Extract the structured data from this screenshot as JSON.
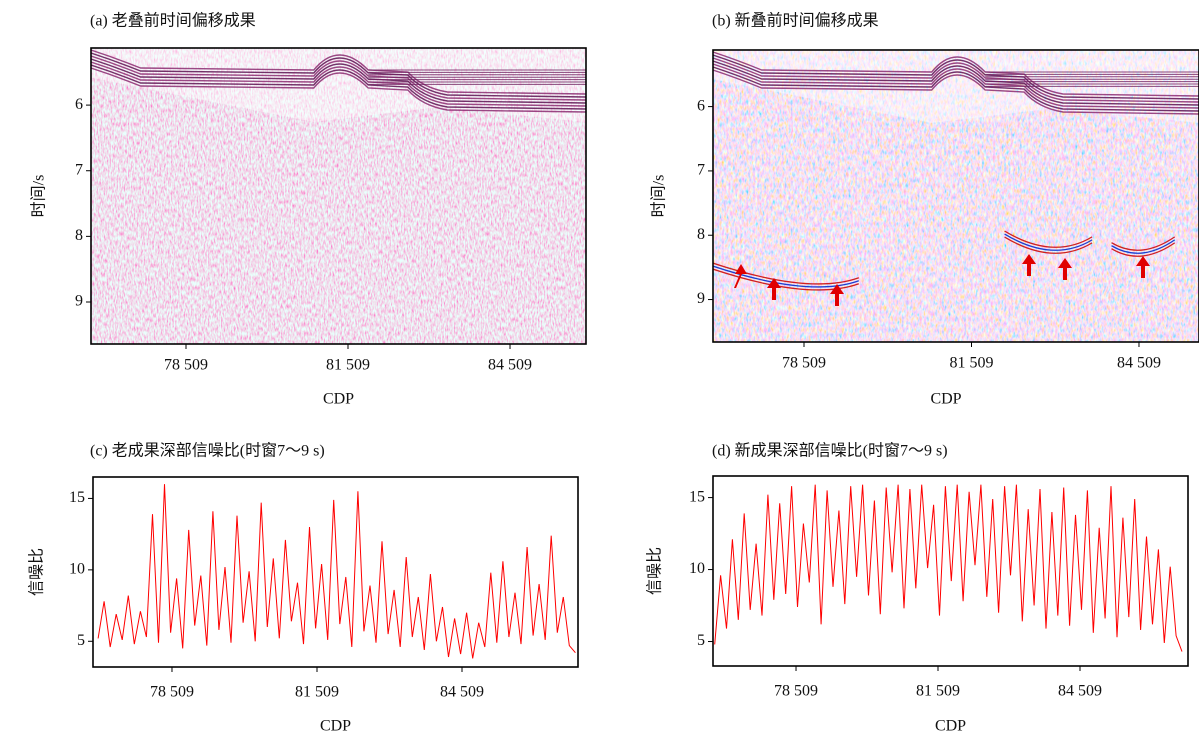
{
  "chart_data": [
    {
      "type": "image",
      "title": "(a) 老叠前时间偏移成果",
      "xlabel": "CDP",
      "ylabel": "时间/s",
      "xlim": [
        76750,
        85916
      ],
      "ylim": [
        5.13,
        9.64
      ],
      "y_inverted": true,
      "xticks": [
        {
          "value": 78509,
          "label": "78 509"
        },
        {
          "value": 81509,
          "label": "81 509"
        },
        {
          "value": 84509,
          "label": "84 509"
        }
      ],
      "yticks": [
        6,
        7,
        8,
        9
      ],
      "palette": "purple"
    },
    {
      "type": "image",
      "title": "(b) 新叠前时间偏移成果",
      "xlabel": "CDP",
      "ylabel": "时间/s",
      "xlim": [
        76879,
        85584
      ],
      "ylim": [
        5.12,
        9.66
      ],
      "y_inverted": true,
      "xticks": [
        {
          "value": 78509,
          "label": "78 509"
        },
        {
          "value": 81509,
          "label": "81 509"
        },
        {
          "value": 84509,
          "label": "84 509"
        }
      ],
      "yticks": [
        6,
        7,
        8,
        9
      ],
      "palette": "red-blue"
    },
    {
      "type": "line",
      "title": "(c) 老成果深部信噪比(时窗7～9 s)",
      "xlabel": "CDP",
      "ylabel": "信噪比",
      "xlim": [
        76875,
        86909
      ],
      "ylim": [
        3.2,
        16.5
      ],
      "xticks": [
        {
          "value": 78509,
          "label": "78 509"
        },
        {
          "value": 81509,
          "label": "81 509"
        },
        {
          "value": 84509,
          "label": "84 509"
        }
      ],
      "yticks": [
        5,
        10,
        15
      ],
      "color": "#ff0000",
      "x": [
        76980,
        77105,
        77230,
        77355,
        77480,
        77605,
        77730,
        77855,
        77980,
        78105,
        78230,
        78355,
        78480,
        78605,
        78730,
        78855,
        78980,
        79105,
        79230,
        79355,
        79480,
        79605,
        79730,
        79855,
        79980,
        80105,
        80230,
        80355,
        80480,
        80605,
        80730,
        80855,
        80980,
        81105,
        81230,
        81355,
        81480,
        81605,
        81730,
        81855,
        81980,
        82105,
        82230,
        82355,
        82480,
        82605,
        82730,
        82855,
        82980,
        83105,
        83230,
        83355,
        83480,
        83605,
        83730,
        83855,
        83980,
        84105,
        84230,
        84355,
        84480,
        84605,
        84730,
        84855,
        84980,
        85105,
        85230,
        85355,
        85480,
        85605,
        85730,
        85855,
        85980,
        86105,
        86230,
        86355,
        86480,
        86605,
        86730,
        86855
      ],
      "values": [
        5.2,
        7.8,
        4.6,
        6.9,
        5.1,
        8.2,
        4.8,
        7.1,
        5.3,
        13.9,
        4.9,
        16.0,
        5.6,
        9.4,
        4.5,
        12.8,
        6.1,
        9.6,
        4.7,
        14.1,
        5.8,
        10.2,
        4.9,
        13.8,
        6.3,
        9.9,
        5.0,
        14.7,
        6.0,
        10.8,
        5.2,
        12.1,
        6.4,
        9.1,
        4.8,
        13.0,
        5.9,
        10.4,
        5.1,
        14.9,
        6.2,
        9.5,
        4.6,
        15.5,
        5.7,
        8.9,
        4.9,
        12.0,
        5.5,
        8.6,
        4.6,
        10.9,
        5.3,
        8.1,
        4.4,
        9.7,
        5.0,
        7.4,
        3.9,
        6.6,
        4.1,
        7.0,
        3.8,
        6.3,
        4.6,
        9.8,
        4.9,
        10.6,
        5.3,
        8.4,
        4.8,
        11.6,
        5.4,
        9.0,
        5.1,
        12.4,
        5.6,
        8.1,
        4.7,
        4.2
      ]
    },
    {
      "type": "line",
      "title": "(d) 新成果深部信噪比(时窗7～9 s)",
      "xlabel": "CDP",
      "ylabel": "信噪比",
      "xlim": [
        76755,
        86791
      ],
      "ylim": [
        3.3,
        16.5
      ],
      "xticks": [
        {
          "value": 78509,
          "label": "78 509"
        },
        {
          "value": 81509,
          "label": "81 509"
        },
        {
          "value": 84509,
          "label": "84 509"
        }
      ],
      "yticks": [
        5,
        10,
        15
      ],
      "color": "#ff0000",
      "x": [
        76790,
        76915,
        77040,
        77165,
        77290,
        77415,
        77540,
        77665,
        77790,
        77915,
        78040,
        78165,
        78290,
        78415,
        78540,
        78665,
        78790,
        78915,
        79040,
        79165,
        79290,
        79415,
        79540,
        79665,
        79790,
        79915,
        80040,
        80165,
        80290,
        80415,
        80540,
        80665,
        80790,
        80915,
        81040,
        81165,
        81290,
        81415,
        81540,
        81665,
        81790,
        81915,
        82040,
        82165,
        82290,
        82415,
        82540,
        82665,
        82790,
        82915,
        83040,
        83165,
        83290,
        83415,
        83540,
        83665,
        83790,
        83915,
        84040,
        84165,
        84290,
        84415,
        84540,
        84665,
        84790,
        84915,
        85040,
        85165,
        85290,
        85415,
        85540,
        85665,
        85790,
        85915,
        86040,
        86165,
        86290,
        86415,
        86540,
        86665
      ],
      "values": [
        4.8,
        9.6,
        5.9,
        12.1,
        6.5,
        13.9,
        7.2,
        11.8,
        6.8,
        15.2,
        7.9,
        14.6,
        8.3,
        15.8,
        7.4,
        13.2,
        9.1,
        15.9,
        6.2,
        15.5,
        8.8,
        14.1,
        7.6,
        15.8,
        9.5,
        15.9,
        8.2,
        14.8,
        6.9,
        15.7,
        9.8,
        15.9,
        7.3,
        15.6,
        8.7,
        15.9,
        10.1,
        14.5,
        6.8,
        15.8,
        9.2,
        15.9,
        7.8,
        15.4,
        10.3,
        15.9,
        8.1,
        14.9,
        7.0,
        15.8,
        9.6,
        15.9,
        6.4,
        14.2,
        7.5,
        15.6,
        5.9,
        14.0,
        6.8,
        15.7,
        6.1,
        13.8,
        7.2,
        15.5,
        5.6,
        12.9,
        6.6,
        15.8,
        5.3,
        13.6,
        6.7,
        14.9,
        5.8,
        12.3,
        6.2,
        11.4,
        4.9,
        10.2,
        5.4,
        4.3
      ]
    }
  ]
}
